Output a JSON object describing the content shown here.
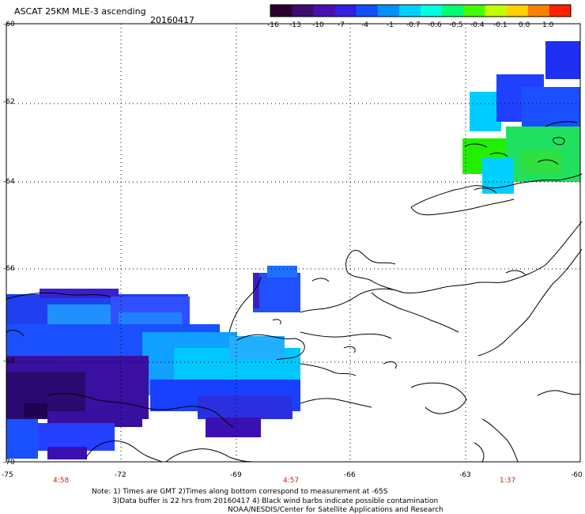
{
  "header": {
    "title": "ASCAT 25KM MLE-3 ascending",
    "date": "20160417"
  },
  "colorbar": {
    "labels": [
      "-16",
      "-13",
      "-10",
      "-7",
      "-4",
      "-1",
      "-0.7",
      "-0.6",
      "-0.5",
      "-0.4",
      "-0.1",
      "0.0",
      "1.0"
    ],
    "colors": [
      "#2a0030",
      "#3d0a70",
      "#4a10b0",
      "#3020e0",
      "#1050ff",
      "#0090ff",
      "#00d0ff",
      "#00ffe0",
      "#00ff70",
      "#40ff00",
      "#c0ff00",
      "#ffd000",
      "#ff8000",
      "#ff2000"
    ]
  },
  "axes": {
    "lat_labels": [
      "-60",
      "-62",
      "-64",
      "-66",
      "-68",
      "-70"
    ],
    "lon_labels": [
      "-75",
      "-72",
      "-69",
      "-66",
      "-63",
      "-60"
    ]
  },
  "times": [
    "4:58",
    "4:57",
    "1:37"
  ],
  "notes": [
    "Note: 1) Times are GMT 2)Times along bottom correspond to measurement at -65S",
    "3)Data buffer is 22 hrs from 20160417 4) Black wind barbs indicate possible contamination",
    "NOAA/NESDIS/Center for Satellite Applications and Research"
  ]
}
